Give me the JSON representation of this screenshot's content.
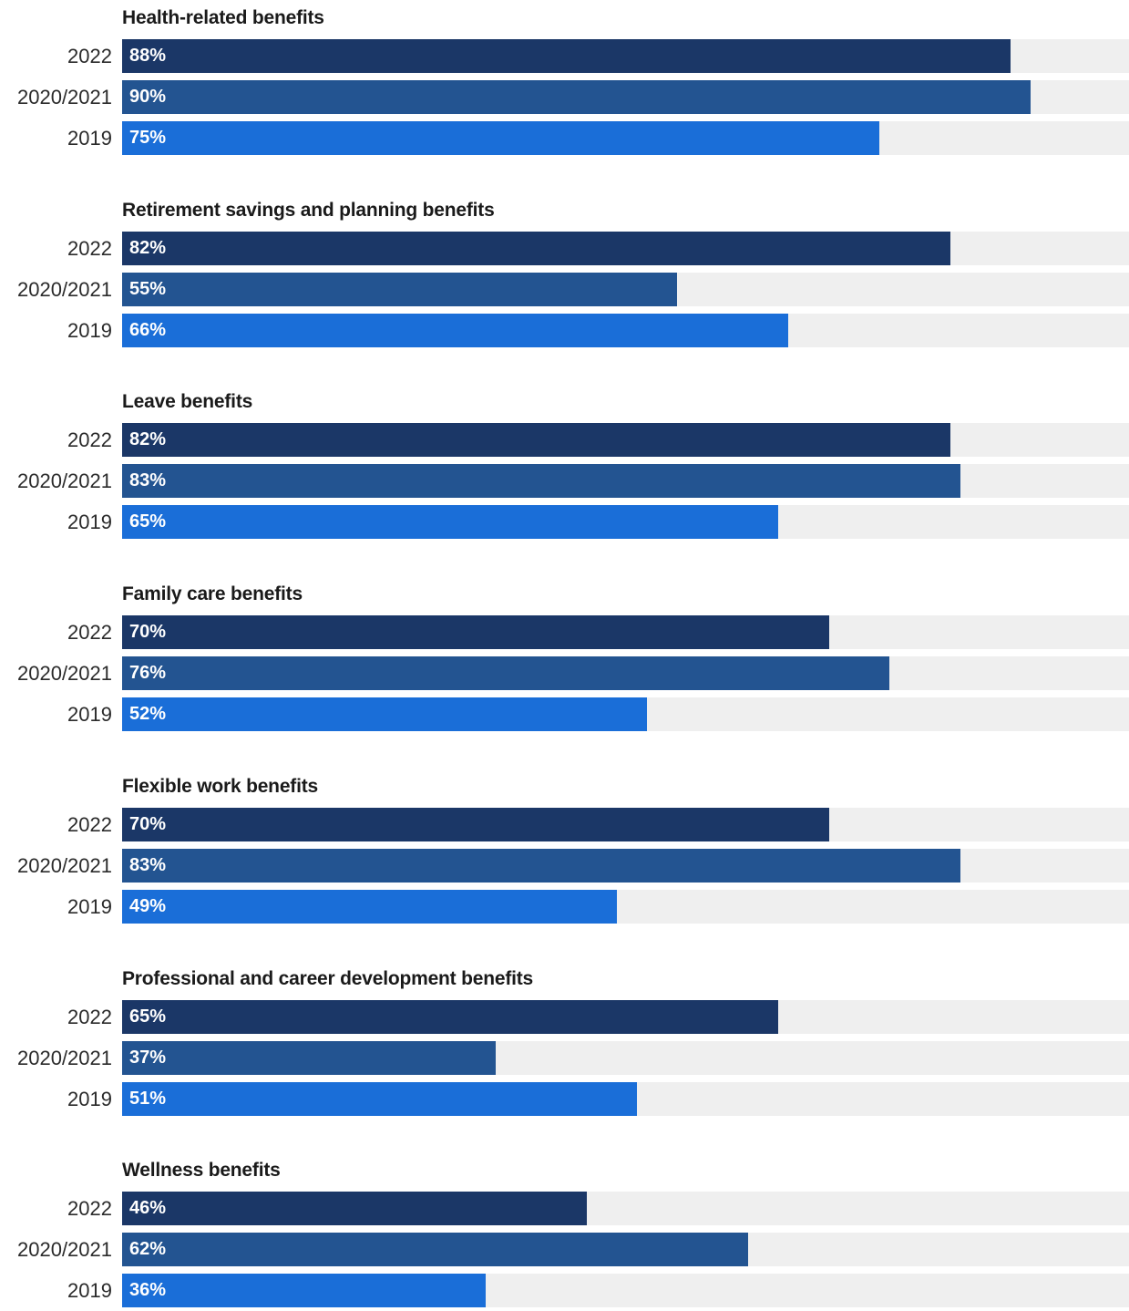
{
  "chart_data": {
    "type": "bar",
    "orientation": "horizontal",
    "xlim": [
      0,
      100
    ],
    "grid": false,
    "legend": "none",
    "series_names": [
      "2022",
      "2020/2021",
      "2019"
    ],
    "colors": {
      "2022": "#1b3767",
      "2020/2021": "#235491",
      "2019": "#1a6ed8",
      "track": "#efefef"
    },
    "groups": [
      {
        "title": "Health-related benefits",
        "bars": [
          {
            "year": "2022",
            "value": 88,
            "label": "88%"
          },
          {
            "year": "2020/2021",
            "value": 90,
            "label": "90%"
          },
          {
            "year": "2019",
            "value": 75,
            "label": "75%"
          }
        ]
      },
      {
        "title": "Retirement savings and planning benefits",
        "bars": [
          {
            "year": "2022",
            "value": 82,
            "label": "82%"
          },
          {
            "year": "2020/2021",
            "value": 55,
            "label": "55%"
          },
          {
            "year": "2019",
            "value": 66,
            "label": "66%"
          }
        ]
      },
      {
        "title": "Leave benefits",
        "bars": [
          {
            "year": "2022",
            "value": 82,
            "label": "82%"
          },
          {
            "year": "2020/2021",
            "value": 83,
            "label": "83%"
          },
          {
            "year": "2019",
            "value": 65,
            "label": "65%"
          }
        ]
      },
      {
        "title": "Family care benefits",
        "bars": [
          {
            "year": "2022",
            "value": 70,
            "label": "70%"
          },
          {
            "year": "2020/2021",
            "value": 76,
            "label": "76%"
          },
          {
            "year": "2019",
            "value": 52,
            "label": "52%"
          }
        ]
      },
      {
        "title": "Flexible work benefits",
        "bars": [
          {
            "year": "2022",
            "value": 70,
            "label": "70%"
          },
          {
            "year": "2020/2021",
            "value": 83,
            "label": "83%"
          },
          {
            "year": "2019",
            "value": 49,
            "label": "49%"
          }
        ]
      },
      {
        "title": "Professional and career development benefits",
        "bars": [
          {
            "year": "2022",
            "value": 65,
            "label": "65%"
          },
          {
            "year": "2020/2021",
            "value": 37,
            "label": "37%"
          },
          {
            "year": "2019",
            "value": 51,
            "label": "51%"
          }
        ]
      },
      {
        "title": "Wellness benefits",
        "bars": [
          {
            "year": "2022",
            "value": 46,
            "label": "46%"
          },
          {
            "year": "2020/2021",
            "value": 62,
            "label": "62%"
          },
          {
            "year": "2019",
            "value": 36,
            "label": "36%"
          }
        ]
      }
    ]
  }
}
